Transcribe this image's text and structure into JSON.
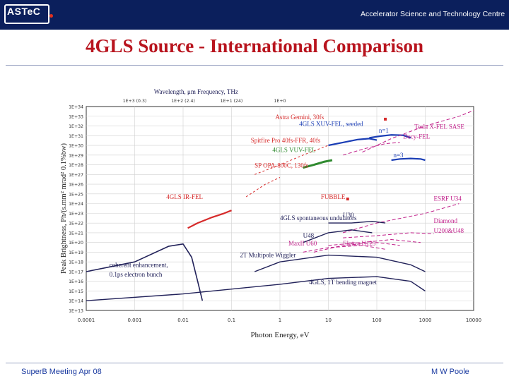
{
  "header": {
    "logo": "ASTeC",
    "organisation": "Accelerator Science and Technology Centre",
    "accent_color": "#b8141e",
    "bar_color": "#0b1f5c"
  },
  "slide": {
    "title": "4GLS Source - International Comparison"
  },
  "footer": {
    "left": "SuperB Meeting  Apr 08",
    "right": "M W Poole"
  },
  "chart_data": {
    "type": "line",
    "x_scale": "log",
    "y_scale": "log",
    "xlim": [
      0.0001,
      10000
    ],
    "ylim": [
      10000000000000.0,
      1e+34
    ],
    "xlabel": "Photon Energy, eV",
    "ylabel": "Peak Brightness, Ph/(s.mm² mrad² 0.1%bw)",
    "top_axis_title": "Wavelength, μm Frequency, THz",
    "top_ticks": [
      {
        "x": 0.001,
        "label": "1E+3 (0.3)"
      },
      {
        "x": 0.01,
        "label": "1E+2 (2.4)"
      },
      {
        "x": 0.1,
        "label": "1E+1 (24)"
      },
      {
        "x": 1,
        "label": "1E+0"
      }
    ],
    "x_ticks": [
      {
        "x": 0.0001,
        "label": "0.0001"
      },
      {
        "x": 0.001,
        "label": "0.001"
      },
      {
        "x": 0.01,
        "label": "0.01"
      },
      {
        "x": 0.1,
        "label": "0.1"
      },
      {
        "x": 1,
        "label": "1"
      },
      {
        "x": 10,
        "label": "10"
      },
      {
        "x": 100,
        "label": "100"
      },
      {
        "x": 1000,
        "label": "1000"
      },
      {
        "x": 10000,
        "label": "10000"
      }
    ],
    "y_ticks": [
      "1E+13",
      "1E+14",
      "1E+15",
      "1E+16",
      "1E+17",
      "1E+18",
      "1E+19",
      "1E+20",
      "1E+21",
      "1E+22",
      "1E+23",
      "1E+24",
      "1E+25",
      "1E+26",
      "1E+27",
      "1E+28",
      "1E+29",
      "1E+30",
      "1E+31",
      "1E+32",
      "1E+33",
      "1E+34"
    ],
    "grid": true,
    "series": [
      {
        "name": "4GLS XUV-FEL, seeded",
        "color": "#1a3db5",
        "width": 2.2,
        "points": [
          [
            10,
            1e+30
          ],
          [
            20,
            2e+30
          ],
          [
            40,
            4e+30
          ],
          [
            70,
            5e+30
          ],
          [
            100,
            3.5e+30
          ]
        ]
      },
      {
        "name": "n=1",
        "color": "#1a3db5",
        "width": 2.2,
        "points": [
          [
            70,
            6e+30
          ],
          [
            120,
            9e+30
          ],
          [
            200,
            1.2e+31
          ],
          [
            350,
            1.1e+31
          ],
          [
            500,
            6e+30
          ]
        ]
      },
      {
        "name": "n=3",
        "color": "#1a3db5",
        "width": 2.2,
        "points": [
          [
            200,
            3e+28
          ],
          [
            300,
            4e+28
          ],
          [
            500,
            4.5e+28
          ],
          [
            800,
            4e+28
          ],
          [
            1000,
            3e+28
          ]
        ]
      },
      {
        "name": "4GLS VUV-FEL",
        "color": "#2f8a2f",
        "width": 3,
        "points": [
          [
            3,
            5e+27
          ],
          [
            5,
            1e+28
          ],
          [
            8,
            2e+28
          ],
          [
            12,
            3e+28
          ]
        ]
      },
      {
        "name": "4GLS IR-FEL",
        "color": "#d62a2a",
        "width": 2.2,
        "points": [
          [
            0.0125,
            3e+21
          ],
          [
            0.02,
            1e+22
          ],
          [
            0.04,
            4e+22
          ],
          [
            0.07,
            1e+23
          ],
          [
            0.1,
            2e+23
          ]
        ]
      },
      {
        "name": "Tesla X-FEL SASE",
        "color": "#c0208a",
        "dash": "5,3",
        "points": [
          [
            50,
            2e+29
          ],
          [
            200,
            5e+30
          ],
          [
            1000,
            1e+32
          ],
          [
            5000,
            1e+33
          ],
          [
            10000,
            4e+33
          ]
        ]
      },
      {
        "name": "Decy-FEL",
        "color": "#c0208a",
        "dash": "5,3",
        "points": [
          [
            20,
            1e+29
          ],
          [
            60,
            5e+29
          ],
          [
            150,
            1.5e+30
          ],
          [
            300,
            2e+30
          ]
        ]
      },
      {
        "name": "Spitfire Pro 40fs-FFR, 40fs",
        "color": "#d62a2a",
        "dash": "3,3",
        "points": [
          [
            0.3,
            1e+27
          ],
          [
            1,
            1e+28
          ],
          [
            3,
            1e+29
          ],
          [
            10,
            1e+30
          ]
        ]
      },
      {
        "name": "SP OPA-800C, 130fs",
        "color": "#d62a2a",
        "dash": "3,3",
        "points": [
          [
            0.2,
            5e+24
          ],
          [
            0.5,
            1e+26
          ],
          [
            1,
            5e+26
          ]
        ]
      },
      {
        "name": "ESRF U34",
        "color": "#c0208a",
        "dash": "5,3",
        "points": [
          [
            20,
            1e+21
          ],
          [
            100,
            1e+22
          ],
          [
            1000,
            1e+23
          ],
          [
            5000,
            1e+24
          ]
        ]
      },
      {
        "name": "Diamond",
        "color": "#c0208a",
        "dash": "5,3",
        "points": [
          [
            20,
            3e+20
          ],
          [
            100,
            5e+20
          ],
          [
            500,
            1e+21
          ],
          [
            1500,
            8e+20
          ]
        ]
      },
      {
        "name": "U200&U48",
        "color": "#c0208a",
        "dash": "5,3",
        "points": [
          [
            10,
            5e+19
          ],
          [
            50,
            1e+20
          ],
          [
            200,
            2e+20
          ],
          [
            800,
            1e+20
          ]
        ]
      },
      {
        "name": "Elettra U125",
        "color": "#c0208a",
        "dash": "5,3",
        "points": [
          [
            5,
            1e+19
          ],
          [
            20,
            5e+19
          ],
          [
            100,
            1e+20
          ],
          [
            300,
            5e+19
          ]
        ]
      },
      {
        "name": "MaxII U60",
        "color": "#c0208a",
        "dash": "5,3",
        "points": [
          [
            3,
            1e+19
          ],
          [
            10,
            3e+19
          ],
          [
            50,
            5e+19
          ],
          [
            150,
            2e+19
          ]
        ]
      },
      {
        "name": "U30",
        "color": "#22225a",
        "width": 1.4,
        "points": [
          [
            10,
            1e+22
          ],
          [
            30,
            1e+22
          ],
          [
            80,
            1.5e+22
          ],
          [
            150,
            1e+22
          ]
        ]
      },
      {
        "name": "U48",
        "color": "#22225a",
        "width": 1.4,
        "points": [
          [
            3,
            1e+20
          ],
          [
            10,
            1e+21
          ],
          [
            30,
            2e+21
          ],
          [
            80,
            1e+21
          ]
        ]
      },
      {
        "name": "2T Multipole Wiggler",
        "color": "#22225a",
        "width": 1.4,
        "points": [
          [
            0.3,
            1e+17
          ],
          [
            1,
            1e+18
          ],
          [
            10,
            5e+18
          ],
          [
            100,
            3e+18
          ],
          [
            500,
            5e+17
          ],
          [
            1000,
            1e+17
          ]
        ]
      },
      {
        "name": "4GLS, 1T bending magnet",
        "color": "#22225a",
        "width": 1.4,
        "points": [
          [
            0.0001,
            100000000000000.0
          ],
          [
            0.01,
            500000000000000.0
          ],
          [
            1,
            5000000000000000.0
          ],
          [
            10,
            2e+16
          ],
          [
            100,
            3e+16
          ],
          [
            500,
            1e+16
          ],
          [
            1000,
            1000000000000000.0
          ]
        ]
      },
      {
        "name": "coherent enhancement, 0.1ps electron bunch",
        "color": "#22225a",
        "width": 1.6,
        "points": [
          [
            0.0001,
            1e+17
          ],
          [
            0.001,
            1e+18
          ],
          [
            0.005,
            4e+19
          ],
          [
            0.01,
            7e+19
          ],
          [
            0.015,
            3e+18
          ],
          [
            0.02,
            1e+16
          ],
          [
            0.025,
            100000000000000.0
          ]
        ]
      }
    ],
    "markers": [
      {
        "name": "Astra Gemini, 30fs",
        "x": 150,
        "y": 5e+32,
        "color": "#d62a2a"
      },
      {
        "name": "FUBBLE",
        "x": 25,
        "y": 3e+24,
        "color": "#d62a2a"
      }
    ],
    "labels": [
      {
        "text": "Wavelength, μm Frequency, THz",
        "x": 0.0025,
        "y": 2e+35,
        "color": "#22225a"
      },
      {
        "text": "Astra Gemini, 30fs",
        "x": 0.8,
        "y": 5e+32,
        "color": "#d62a2a"
      },
      {
        "text": "4GLS XUV-FEL, seeded",
        "x": 2.5,
        "y": 1e+32,
        "color": "#1a3db5"
      },
      {
        "text": "Tesla X-FEL SASE",
        "x": 600,
        "y": 5e+31,
        "color": "#c0208a"
      },
      {
        "text": "n=1",
        "x": 110,
        "y": 2e+31,
        "color": "#1a3db5"
      },
      {
        "text": "Decy-FEL",
        "x": 350,
        "y": 5e+30,
        "color": "#c0208a"
      },
      {
        "text": "Spitfire Pro 40fs-FFR, 40fs",
        "x": 0.25,
        "y": 2e+30,
        "color": "#d62a2a"
      },
      {
        "text": "4GLS VUV-FEL",
        "x": 0.7,
        "y": 2e+29,
        "color": "#2f8a2f"
      },
      {
        "text": "n=3",
        "x": 220,
        "y": 6e+28,
        "color": "#1a3db5"
      },
      {
        "text": "SP OPA-800C, 130fs",
        "x": 0.3,
        "y": 5e+27,
        "color": "#d62a2a"
      },
      {
        "text": "4GLS IR-FEL",
        "x": 0.0045,
        "y": 3e+24,
        "color": "#d62a2a"
      },
      {
        "text": "FUBBLE",
        "x": 7,
        "y": 3e+24,
        "color": "#d62a2a"
      },
      {
        "text": "ESRF U34",
        "x": 1500,
        "y": 2e+24,
        "color": "#c0208a"
      },
      {
        "text": "4GLS spontaneous undulators",
        "x": 1,
        "y": 2e+22,
        "color": "#22225a"
      },
      {
        "text": "U30",
        "x": 20,
        "y": 4e+22,
        "color": "#22225a"
      },
      {
        "text": "Diamond",
        "x": 1500,
        "y": 1e+22,
        "color": "#c0208a"
      },
      {
        "text": "U200&U48",
        "x": 1500,
        "y": 1e+21,
        "color": "#c0208a"
      },
      {
        "text": "U48",
        "x": 3,
        "y": 3e+20,
        "color": "#22225a"
      },
      {
        "text": "MaxII U60",
        "x": 1.5,
        "y": 5e+19,
        "color": "#c0208a"
      },
      {
        "text": "Elettra U125",
        "x": 20,
        "y": 5e+19,
        "color": "#c0208a"
      },
      {
        "text": "2T Multipole Wiggler",
        "x": 0.15,
        "y": 3e+18,
        "color": "#22225a"
      },
      {
        "text": "coherent enhancement,",
        "x": 0.0003,
        "y": 3e+17,
        "color": "#22225a"
      },
      {
        "text": "0.1ps electron bunch",
        "x": 0.0003,
        "y": 3e+16,
        "color": "#22225a"
      },
      {
        "text": "4GLS, 1T bending magnet",
        "x": 4,
        "y": 5000000000000000.0,
        "color": "#22225a"
      }
    ]
  }
}
